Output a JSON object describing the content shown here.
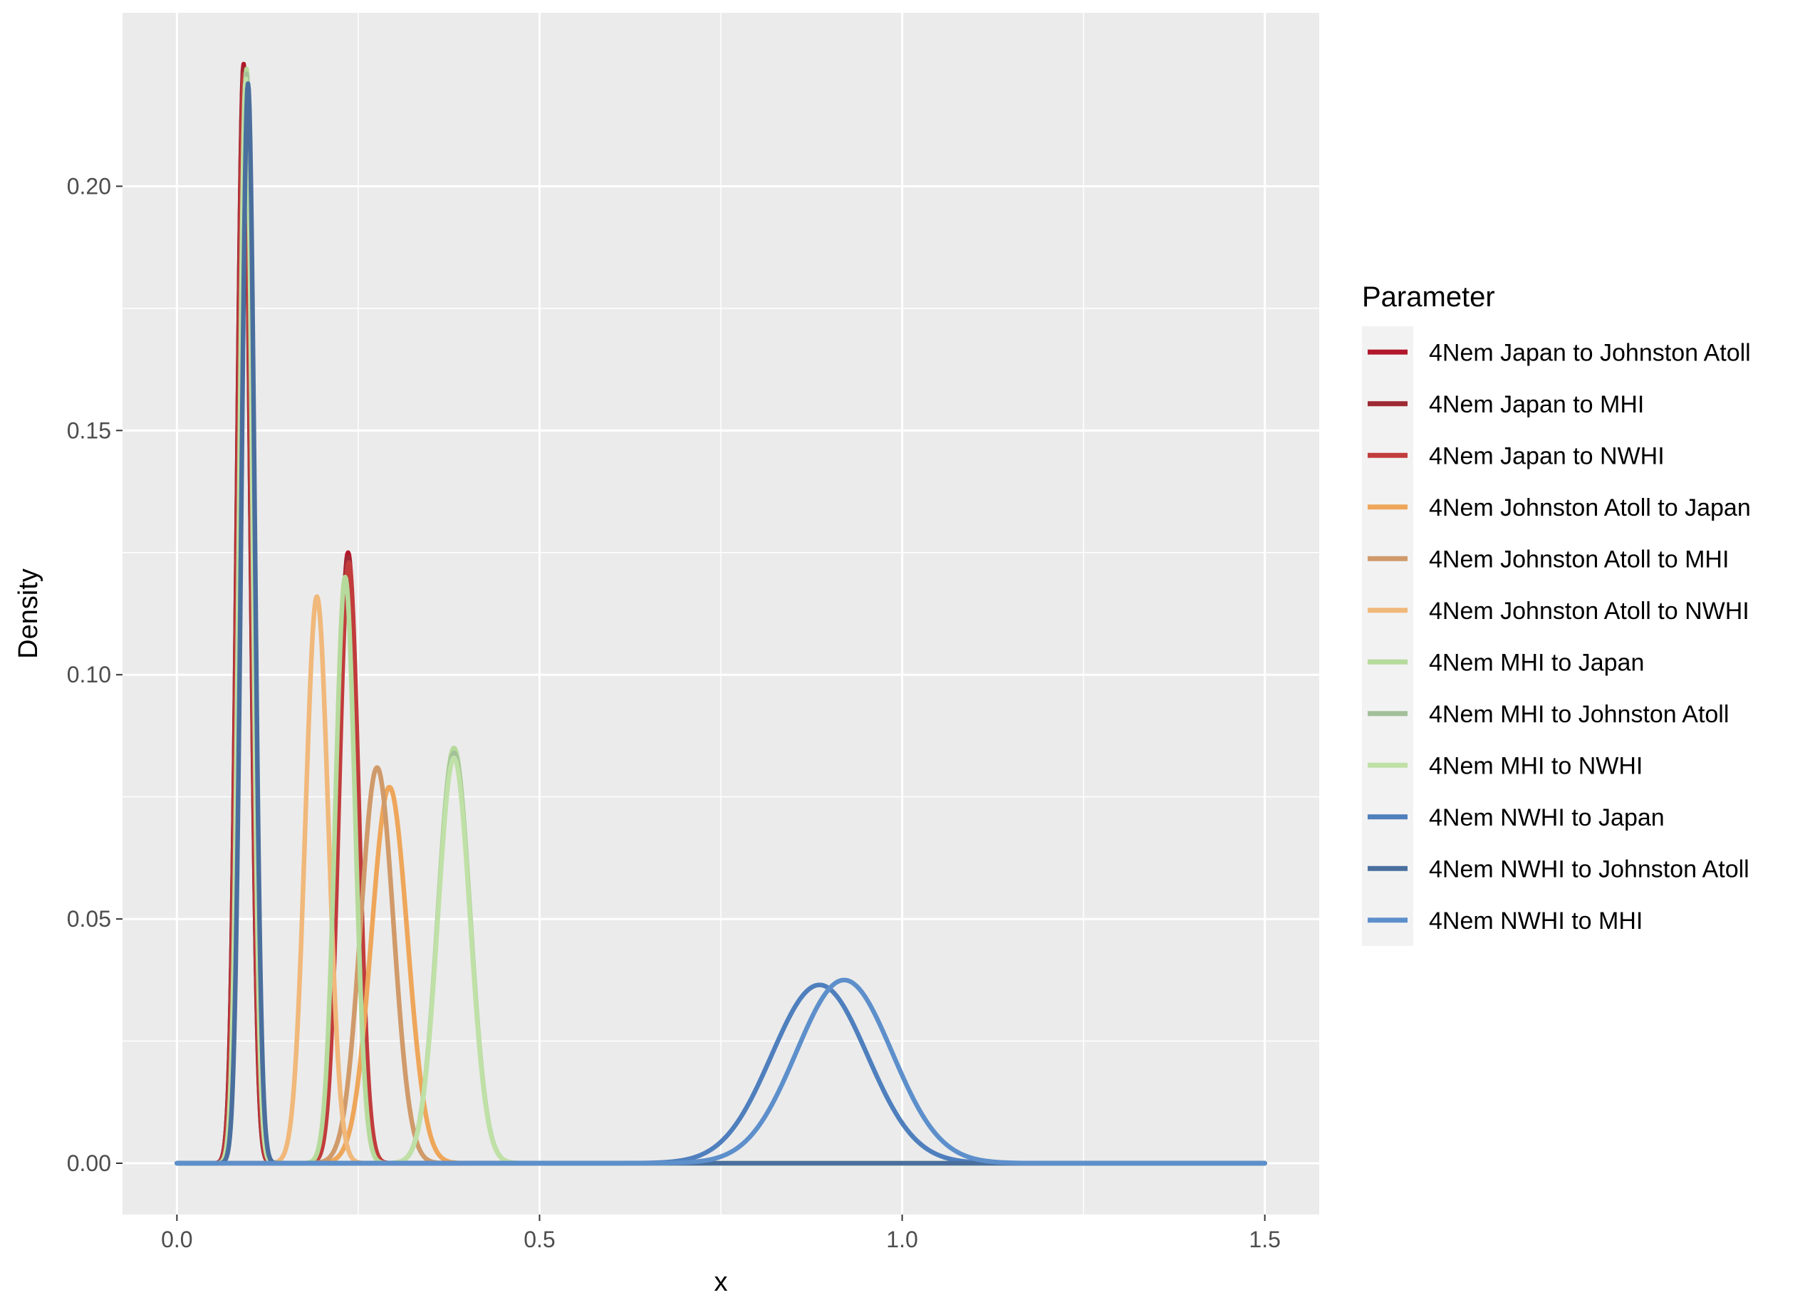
{
  "chart_data": {
    "type": "line",
    "title": "",
    "xlabel": "x",
    "ylabel": "Density",
    "xlim": [
      -0.075,
      1.575
    ],
    "ylim": [
      -0.0105,
      0.2355
    ],
    "x_ticks": [
      0.0,
      0.5,
      1.0,
      1.5
    ],
    "x_tick_labels": [
      "0.0",
      "0.5",
      "1.0",
      "1.5"
    ],
    "y_ticks": [
      0.0,
      0.05,
      0.1,
      0.15,
      0.2
    ],
    "y_tick_labels": [
      "0.00",
      "0.05",
      "0.10",
      "0.15",
      "0.20"
    ],
    "grid": true,
    "x_range_drawn": [
      0.0,
      1.5
    ],
    "legend": {
      "title": "Parameter",
      "position": "right"
    },
    "series": [
      {
        "name": "4Nem Japan to Johnston Atoll",
        "color": "#b2182b",
        "peaks": [
          {
            "mu": 0.092,
            "sigma": 0.0092,
            "h": 0.225
          },
          {
            "mu": 0.236,
            "sigma": 0.0136,
            "h": 0.125
          }
        ]
      },
      {
        "name": "4Nem Japan to MHI",
        "color": "#9e2a33",
        "peaks": [
          {
            "mu": 0.092,
            "sigma": 0.0092,
            "h": 0.224
          },
          {
            "mu": 0.236,
            "sigma": 0.0136,
            "h": 0.124
          }
        ]
      },
      {
        "name": "4Nem Japan to NWHI",
        "color": "#c23c3c",
        "peaks": [
          {
            "mu": 0.093,
            "sigma": 0.0092,
            "h": 0.223
          },
          {
            "mu": 0.237,
            "sigma": 0.0136,
            "h": 0.123
          }
        ]
      },
      {
        "name": "4Nem Johnston Atoll to Japan",
        "color": "#eea65a",
        "peaks": [
          {
            "mu": 0.293,
            "sigma": 0.0248,
            "h": 0.077
          }
        ]
      },
      {
        "name": "4Nem Johnston Atoll to MHI",
        "color": "#d09a6a",
        "peaks": [
          {
            "mu": 0.276,
            "sigma": 0.0226,
            "h": 0.081
          }
        ]
      },
      {
        "name": "4Nem Johnston Atoll to NWHI",
        "color": "#f0b87a",
        "peaks": [
          {
            "mu": 0.193,
            "sigma": 0.0158,
            "h": 0.116
          }
        ]
      },
      {
        "name": "4Nem MHI to Japan",
        "color": "#b5da9b",
        "peaks": [
          {
            "mu": 0.096,
            "sigma": 0.0092,
            "h": 0.224
          },
          {
            "mu": 0.232,
            "sigma": 0.0136,
            "h": 0.12
          },
          {
            "mu": 0.382,
            "sigma": 0.0222,
            "h": 0.085
          }
        ]
      },
      {
        "name": "4Nem MHI to Johnston Atoll",
        "color": "#a3c09a",
        "peaks": [
          {
            "mu": 0.096,
            "sigma": 0.0092,
            "h": 0.223
          },
          {
            "mu": 0.382,
            "sigma": 0.0222,
            "h": 0.084
          }
        ]
      },
      {
        "name": "4Nem MHI to NWHI",
        "color": "#bfe0a6",
        "peaks": [
          {
            "mu": 0.095,
            "sigma": 0.0092,
            "h": 0.222
          },
          {
            "mu": 0.382,
            "sigma": 0.0222,
            "h": 0.083
          }
        ]
      },
      {
        "name": "4Nem NWHI to Japan",
        "color": "#4f7fbd",
        "peaks": [
          {
            "mu": 0.886,
            "sigma": 0.066,
            "h": 0.0365
          }
        ]
      },
      {
        "name": "4Nem NWHI to Johnston Atoll",
        "color": "#4a6f9e",
        "peaks": [
          {
            "mu": 0.098,
            "sigma": 0.0092,
            "h": 0.221
          }
        ]
      },
      {
        "name": "4Nem NWHI to MHI",
        "color": "#5d8fcb",
        "peaks": [
          {
            "mu": 0.92,
            "sigma": 0.066,
            "h": 0.0375
          }
        ]
      }
    ]
  }
}
